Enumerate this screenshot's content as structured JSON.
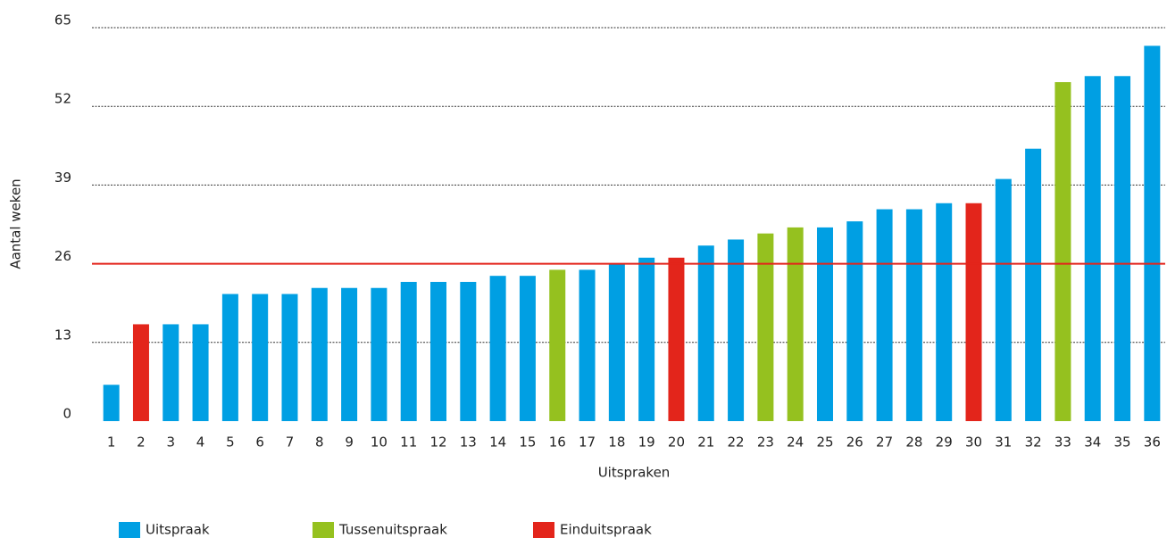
{
  "chart_data": {
    "type": "bar",
    "x_label": "Uitspraken",
    "y_label": "Aantal weken",
    "categories": [
      "1",
      "2",
      "3",
      "4",
      "5",
      "6",
      "7",
      "8",
      "9",
      "10",
      "11",
      "12",
      "13",
      "14",
      "15",
      "16",
      "17",
      "18",
      "19",
      "20",
      "21",
      "22",
      "23",
      "24",
      "25",
      "26",
      "27",
      "28",
      "29",
      "30",
      "31",
      "32",
      "33",
      "34",
      "35",
      "36"
    ],
    "series": [
      {
        "name": "Uitspraak",
        "color": "#009fe3",
        "values": [
          6,
          null,
          16,
          16,
          21,
          21,
          21,
          22,
          22,
          22,
          23,
          23,
          23,
          24,
          24,
          null,
          25,
          26,
          27,
          null,
          29,
          30,
          null,
          null,
          32,
          33,
          35,
          35,
          36,
          null,
          40,
          45,
          null,
          57,
          57,
          62
        ]
      },
      {
        "name": "Tussenuitspraak",
        "color": "#95c11f",
        "values": [
          null,
          null,
          null,
          null,
          null,
          null,
          null,
          null,
          null,
          null,
          null,
          null,
          null,
          null,
          null,
          25,
          null,
          null,
          null,
          null,
          null,
          null,
          31,
          32,
          null,
          null,
          null,
          null,
          null,
          null,
          null,
          null,
          56,
          null,
          null,
          null
        ]
      },
      {
        "name": "Einduitspraak",
        "color": "#e3251b",
        "values": [
          null,
          16,
          null,
          null,
          null,
          null,
          null,
          null,
          null,
          null,
          null,
          null,
          null,
          null,
          null,
          null,
          null,
          null,
          null,
          27,
          null,
          null,
          null,
          null,
          null,
          null,
          null,
          null,
          null,
          36,
          null,
          null,
          null,
          null,
          null,
          null
        ]
      }
    ],
    "ylim": [
      0,
      65
    ],
    "yticks": [
      0,
      13,
      26,
      39,
      52,
      65
    ],
    "grid": true,
    "reference_line": {
      "value": 26,
      "color": "#e3251b"
    },
    "legend": "bottom-left"
  }
}
